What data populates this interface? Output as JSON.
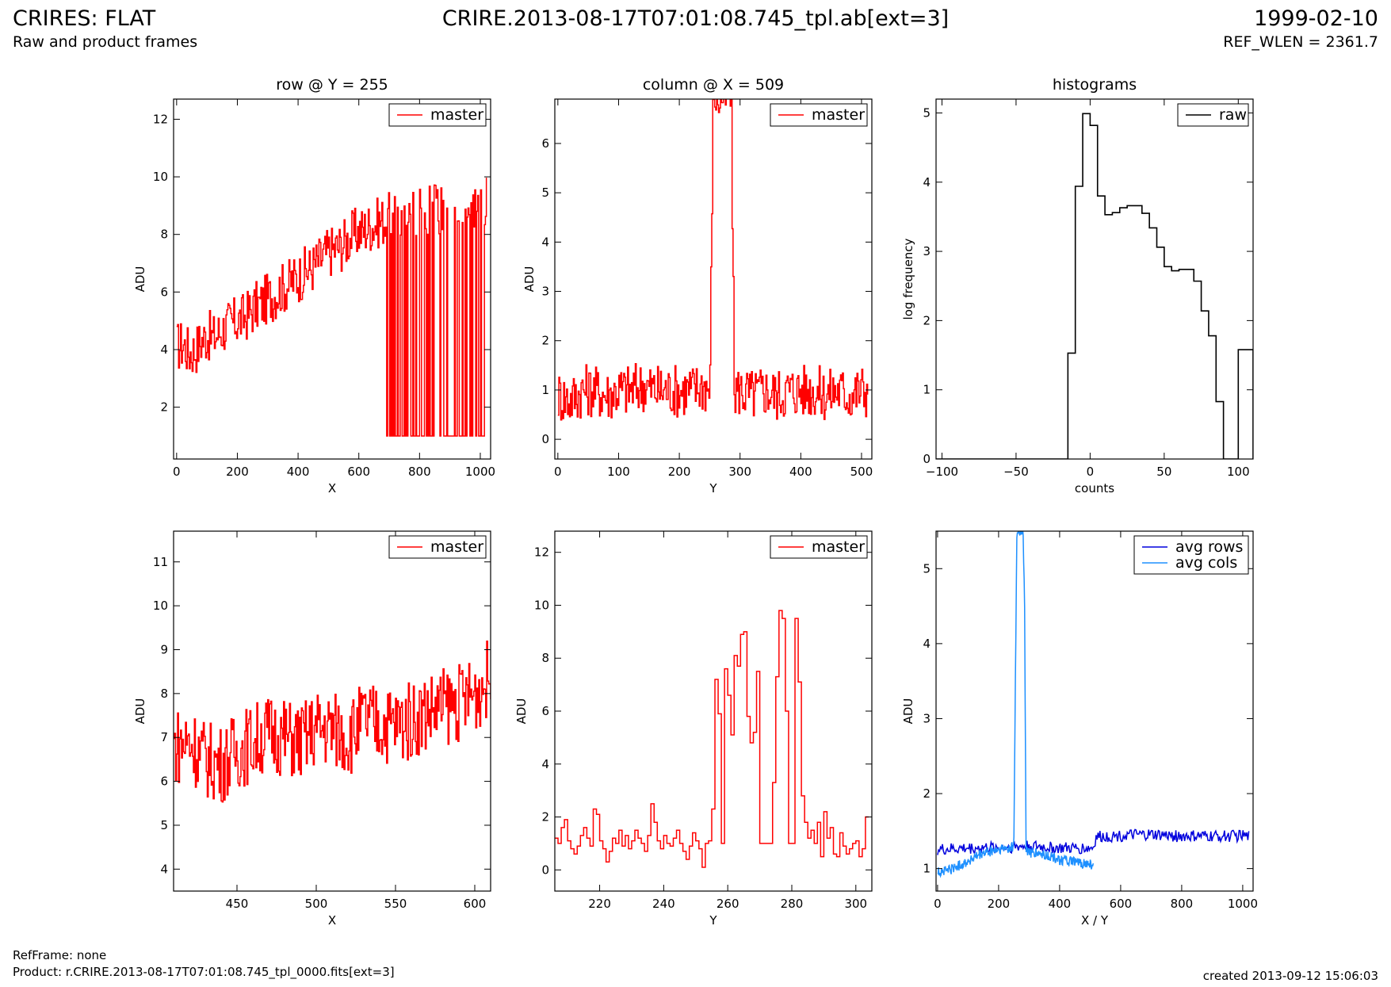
{
  "header": {
    "title": "CRIRES: FLAT",
    "subtitle": "Raw and product frames",
    "file": "CRIRE.2013-08-17T07:01:08.745_tpl.ab[ext=3]",
    "date": "1999-02-10",
    "ref_wlen": "REF_WLEN = 2361.7"
  },
  "footer": {
    "refframe": "RefFrame: none",
    "product": "Product: r.CRIRE.2013-08-17T07:01:08.745_tpl_0000.fits[ext=3]",
    "created": "created 2013-09-12 15:06:03"
  },
  "colors": {
    "master": "#ff0000",
    "raw": "#000000",
    "avg_rows": "#0000dd",
    "avg_cols": "#1e90ff"
  },
  "chart_data": [
    {
      "id": "row-full",
      "type": "line",
      "step": true,
      "title": "row @ Y = 255",
      "xlabel": "X",
      "ylabel": "ADU",
      "xlim": [
        -10,
        1034
      ],
      "ylim": [
        0.2,
        12.7
      ],
      "xticks": [
        0,
        200,
        400,
        600,
        800,
        1000
      ],
      "yticks": [
        2,
        4,
        6,
        8,
        10,
        12
      ],
      "legend": "top-right",
      "series": [
        {
          "name": "master",
          "color": "#ff0000",
          "x": [
            0,
            20,
            40,
            60,
            80,
            100,
            120,
            140,
            160,
            180,
            200,
            220,
            240,
            260,
            280,
            300,
            320,
            340,
            360,
            380,
            400,
            420,
            440,
            460,
            480,
            500,
            520,
            540,
            560,
            580,
            600,
            620,
            640,
            660,
            680,
            700,
            720,
            740,
            760,
            780,
            800,
            820,
            840,
            860,
            880,
            900,
            920,
            940,
            960,
            980,
            1000,
            1020
          ],
          "y": [
            4.1,
            4.2,
            3.9,
            4.0,
            4.3,
            4.5,
            4.4,
            4.6,
            4.8,
            4.9,
            5.0,
            5.1,
            5.3,
            5.5,
            5.6,
            5.8,
            5.9,
            6.1,
            6.2,
            6.4,
            6.5,
            6.7,
            6.8,
            7.0,
            7.2,
            7.4,
            7.5,
            7.6,
            7.8,
            8.0,
            8.1,
            8.2,
            8.3,
            8.4,
            8.5,
            8.6,
            8.6,
            8.7,
            8.7,
            8.8,
            8.8,
            8.8,
            8.9,
            8.9,
            8.9,
            9.0,
            9.0,
            9.0,
            9.1,
            9.1,
            9.1,
            9.2
          ],
          "noise": 0.9,
          "floor_from_x": 690,
          "floor_value": 1.0
        }
      ]
    },
    {
      "id": "col-full",
      "type": "line",
      "step": true,
      "title": "column @ X = 509",
      "xlabel": "Y",
      "ylabel": "ADU",
      "xlim": [
        -5,
        517
      ],
      "ylim": [
        -0.4,
        6.9
      ],
      "xticks": [
        0,
        100,
        200,
        300,
        400,
        500
      ],
      "yticks": [
        0,
        1,
        2,
        3,
        4,
        5,
        6
      ],
      "legend": "top-right",
      "series": [
        {
          "name": "master",
          "color": "#ff0000",
          "x": [
            0,
            20,
            40,
            60,
            80,
            100,
            120,
            140,
            160,
            180,
            200,
            220,
            240,
            250,
            255,
            260,
            265,
            270,
            275,
            280,
            285,
            290,
            300,
            320,
            340,
            360,
            380,
            400,
            420,
            440,
            460,
            480,
            500,
            510
          ],
          "y": [
            0.9,
            0.8,
            1.0,
            1.0,
            0.9,
            1.0,
            1.0,
            1.1,
            1.0,
            1.0,
            1.0,
            1.0,
            1.1,
            1.0,
            6.9,
            7.0,
            6.9,
            7.0,
            6.9,
            7.0,
            6.9,
            1.0,
            1.0,
            0.9,
            1.0,
            0.9,
            1.0,
            1.0,
            1.0,
            0.9,
            1.0,
            0.9,
            1.0,
            1.0
          ],
          "noise": 0.55
        }
      ]
    },
    {
      "id": "histogram",
      "type": "bar",
      "step": true,
      "title": "histograms",
      "xlabel": "counts",
      "ylabel": "log frequency",
      "xlim": [
        -104,
        110
      ],
      "ylim": [
        0,
        5.2
      ],
      "xticks": [
        -100,
        -50,
        0,
        50,
        100
      ],
      "xticklabels": [
        "−100",
        "−50",
        "0",
        "50",
        "100"
      ],
      "yticks": [
        0,
        1,
        2,
        3,
        4,
        5
      ],
      "legend": "top-right",
      "series": [
        {
          "name": "raw",
          "color": "#000000",
          "bin_edges": [
            -104,
            -15,
            -10,
            -5,
            0,
            5,
            10,
            15,
            20,
            25,
            30,
            35,
            40,
            45,
            50,
            55,
            60,
            65,
            70,
            75,
            80,
            85,
            90,
            95,
            100,
            105,
            110
          ],
          "values": [
            0,
            1.53,
            3.94,
            4.99,
            4.82,
            3.8,
            3.53,
            3.56,
            3.63,
            3.66,
            3.66,
            3.55,
            3.34,
            3.06,
            2.78,
            2.72,
            2.74,
            2.74,
            2.57,
            2.14,
            1.78,
            0.83,
            0,
            0,
            1.58,
            1.58
          ]
        }
      ]
    },
    {
      "id": "row-zoom",
      "type": "line",
      "step": true,
      "title": "",
      "xlabel": "X",
      "ylabel": "ADU",
      "xlim": [
        410,
        610
      ],
      "ylim": [
        3.5,
        11.7
      ],
      "xticks": [
        450,
        500,
        550,
        600
      ],
      "yticks": [
        4,
        5,
        6,
        7,
        8,
        9,
        10,
        11
      ],
      "legend": "top-right",
      "series": [
        {
          "name": "master",
          "color": "#ff0000",
          "x": [
            410,
            420,
            430,
            440,
            450,
            460,
            470,
            480,
            490,
            500,
            510,
            520,
            530,
            540,
            550,
            560,
            570,
            580,
            590,
            600,
            610
          ],
          "y": [
            6.8,
            6.9,
            6.5,
            6.4,
            6.7,
            6.9,
            7.1,
            7.0,
            6.9,
            7.2,
            7.2,
            7.0,
            7.4,
            7.3,
            7.3,
            7.4,
            7.6,
            7.7,
            7.8,
            8.0,
            8.4
          ],
          "noise": 0.9
        }
      ]
    },
    {
      "id": "col-zoom",
      "type": "line",
      "step": true,
      "title": "",
      "xlabel": "Y",
      "ylabel": "ADU",
      "xlim": [
        206,
        305
      ],
      "ylim": [
        -0.8,
        12.8
      ],
      "xticks": [
        220,
        240,
        260,
        280,
        300
      ],
      "yticks": [
        0,
        2,
        4,
        6,
        8,
        10,
        12
      ],
      "legend": "top-right",
      "series": [
        {
          "name": "master",
          "color": "#ff0000",
          "x": [
            206,
            207,
            208,
            209,
            210,
            211,
            212,
            213,
            214,
            215,
            216,
            217,
            218,
            219,
            220,
            221,
            222,
            223,
            224,
            225,
            226,
            227,
            228,
            229,
            230,
            231,
            232,
            233,
            234,
            235,
            236,
            237,
            238,
            239,
            240,
            241,
            242,
            243,
            244,
            245,
            246,
            247,
            248,
            249,
            250,
            251,
            252,
            253,
            254,
            255,
            256,
            257,
            258,
            259,
            260,
            261,
            262,
            263,
            264,
            265,
            266,
            267,
            268,
            269,
            270,
            271,
            272,
            273,
            274,
            275,
            276,
            277,
            278,
            279,
            280,
            281,
            282,
            283,
            284,
            285,
            286,
            287,
            288,
            289,
            290,
            291,
            292,
            293,
            294,
            295,
            296,
            297,
            298,
            299,
            300,
            301,
            302,
            303,
            304
          ],
          "y": [
            1.2,
            1.0,
            1.6,
            1.9,
            1.1,
            0.8,
            0.6,
            0.9,
            1.3,
            1.6,
            1.2,
            0.9,
            2.3,
            2.1,
            1.1,
            0.8,
            0.3,
            0.7,
            1.2,
            1.0,
            1.5,
            0.9,
            1.3,
            0.8,
            1.1,
            1.5,
            1.2,
            1.0,
            0.7,
            1.3,
            2.5,
            1.8,
            1.1,
            0.8,
            1.3,
            1.0,
            0.9,
            1.2,
            1.5,
            1.0,
            0.7,
            0.4,
            0.9,
            1.4,
            1.1,
            0.8,
            0.1,
            1.0,
            1.1,
            2.3,
            7.2,
            5.9,
            1.0,
            7.6,
            6.6,
            5.1,
            8.1,
            7.7,
            8.9,
            9.0,
            5.8,
            4.8,
            5.2,
            7.5,
            1.0,
            1.0,
            1.0,
            1.0,
            3.3,
            7.3,
            9.8,
            9.5,
            6.0,
            1.0,
            1.0,
            9.5,
            7.1,
            2.8,
            1.8,
            1.2,
            1.5,
            1.0,
            1.8,
            0.5,
            2.2,
            1.2,
            1.6,
            0.6,
            0.5,
            1.4,
            0.9,
            0.6,
            0.8,
            1.0,
            1.1,
            0.5,
            0.8,
            2.0,
            2.0
          ]
        }
      ]
    },
    {
      "id": "averages",
      "type": "line",
      "step": false,
      "title": "",
      "xlabel": "X / Y",
      "ylabel": "ADU",
      "xlim": [
        -5,
        1034
      ],
      "ylim": [
        0.7,
        5.5
      ],
      "xticks": [
        0,
        200,
        400,
        600,
        800,
        1000
      ],
      "yticks": [
        1,
        2,
        3,
        4,
        5
      ],
      "legend": "top-right",
      "series": [
        {
          "name": "avg rows",
          "color": "#0000dd",
          "x": [
            0,
            100,
            200,
            300,
            400,
            500,
            510,
            520,
            600,
            700,
            800,
            900,
            1000,
            1020
          ],
          "y": [
            1.25,
            1.27,
            1.28,
            1.3,
            1.27,
            1.27,
            1.28,
            1.42,
            1.44,
            1.45,
            1.43,
            1.43,
            1.44,
            1.42
          ],
          "noise": 0.08
        },
        {
          "name": "avg cols",
          "color": "#1e90ff",
          "x": [
            0,
            50,
            100,
            150,
            200,
            240,
            250,
            255,
            260,
            265,
            270,
            275,
            280,
            285,
            290,
            300,
            350,
            400,
            450,
            500,
            510
          ],
          "y": [
            0.95,
            1.0,
            1.1,
            1.2,
            1.25,
            1.28,
            1.3,
            3.5,
            5.5,
            5.5,
            5.5,
            5.5,
            5.5,
            4.6,
            1.25,
            1.22,
            1.18,
            1.12,
            1.08,
            1.05,
            1.05
          ],
          "noise": 0.07
        }
      ]
    }
  ]
}
